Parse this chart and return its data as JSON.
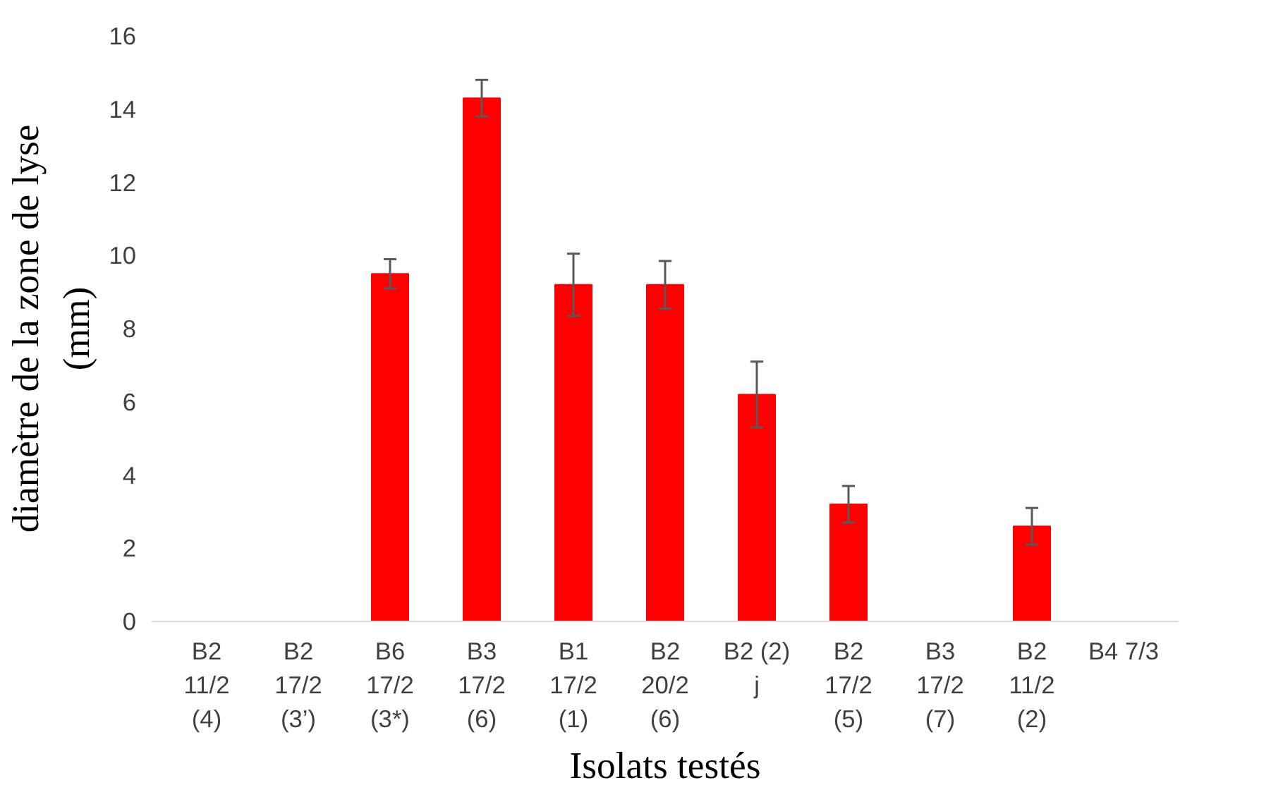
{
  "chart_data": {
    "type": "bar",
    "xlabel": "Isolats testés",
    "ylabel": "diamètre de la zone de lyse\n(mm)",
    "categories": [
      "B2\n11/2\n(4)",
      "B2\n17/2\n(3’)",
      "B6\n17/2\n(3*)",
      "B3\n17/2\n(6)",
      "B1\n17/2\n(1)",
      "B2\n20/2\n(6)",
      "B2 (2)\nj",
      "B2\n17/2\n(5)",
      "B3\n17/2\n(7)",
      "B2\n11/2\n(2)",
      "B4 7/3"
    ],
    "values": [
      0,
      0,
      9.5,
      14.3,
      9.2,
      9.2,
      6.2,
      3.2,
      0,
      2.6,
      0
    ],
    "errors": [
      null,
      null,
      0.4,
      0.5,
      0.85,
      0.65,
      0.9,
      0.5,
      null,
      0.5,
      null
    ],
    "color": "#ff0000",
    "ylim": [
      0,
      16
    ],
    "yticks": [
      0,
      2,
      4,
      6,
      8,
      10,
      12,
      14,
      16
    ],
    "grid": false
  }
}
